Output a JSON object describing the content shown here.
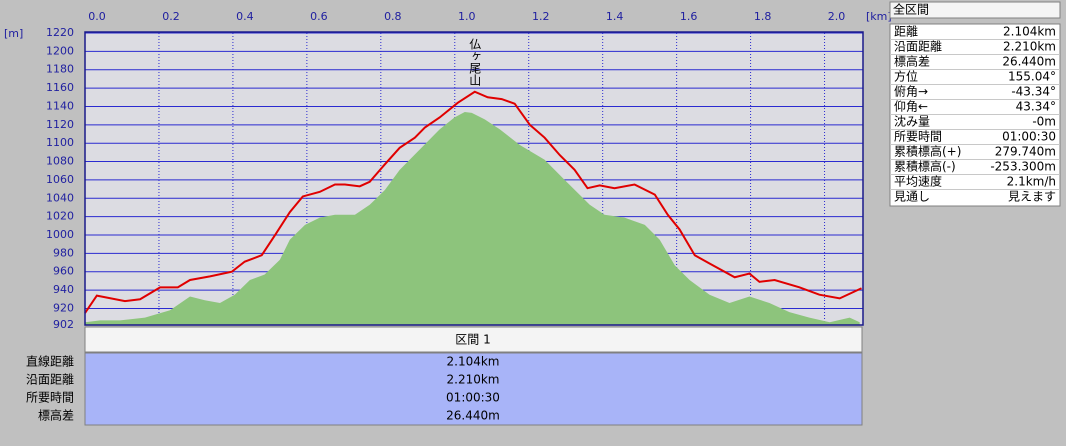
{
  "chart_data": {
    "type": "profile",
    "x_label": "[km]",
    "y_label": "[m]",
    "annotations": [
      {
        "text": "仏ヶ尾山",
        "x": 1.054
      }
    ],
    "xlim": [
      0,
      2.104
    ],
    "xticks": [
      {
        "value": 0,
        "label": "0.0"
      },
      0.2,
      0.4,
      0.6,
      0.8,
      {
        "value": 1,
        "label": "1.0"
      },
      1.2,
      1.4,
      1.6,
      1.8,
      {
        "value": 2,
        "label": "2.0"
      }
    ],
    "ylim": [
      902,
      1220
    ],
    "yticks": [
      902,
      920,
      940,
      960,
      980,
      1000,
      1020,
      1040,
      1060,
      1080,
      1100,
      1120,
      1140,
      1160,
      1180,
      1200,
      1220
    ],
    "grid": true,
    "series": [
      {
        "color": "#8dc47c",
        "kind": "area",
        "x": [
          0,
          0.041,
          0.095,
          0.162,
          0.23,
          0.284,
          0.324,
          0.365,
          0.405,
          0.446,
          0.486,
          0.527,
          0.554,
          0.595,
          0.635,
          0.676,
          0.73,
          0.77,
          0.811,
          0.851,
          0.905,
          0.959,
          0.999,
          1.027,
          1.046,
          1.081,
          1.122,
          1.176,
          1.243,
          1.297,
          1.365,
          1.405,
          1.459,
          1.514,
          1.554,
          1.595,
          1.635,
          1.689,
          1.743,
          1.797,
          1.851,
          1.905,
          1.959,
          2.014,
          2.068,
          2.095
        ],
        "values": [
          905,
          907,
          907,
          910,
          918,
          933,
          929,
          926,
          935,
          951,
          957,
          973,
          995,
          1011,
          1019,
          1022,
          1022,
          1033,
          1049,
          1071,
          1093,
          1115,
          1128,
          1134,
          1133,
          1126,
          1115,
          1098,
          1082,
          1060,
          1033,
          1022,
          1019,
          1011,
          995,
          967,
          951,
          935,
          926,
          933,
          926,
          916,
          910,
          905,
          910,
          905
        ]
      },
      {
        "color": "#e00000",
        "kind": "line",
        "x": [
          0,
          0.032,
          0.108,
          0.149,
          0.203,
          0.251,
          0.284,
          0.338,
          0.397,
          0.432,
          0.478,
          0.514,
          0.554,
          0.589,
          0.635,
          0.676,
          0.703,
          0.743,
          0.77,
          0.811,
          0.851,
          0.892,
          0.919,
          0.959,
          1.008,
          1.054,
          1.089,
          1.127,
          1.162,
          1.203,
          1.243,
          1.284,
          1.324,
          1.359,
          1.392,
          1.432,
          1.486,
          1.541,
          1.576,
          1.608,
          1.649,
          1.689,
          1.757,
          1.797,
          1.824,
          1.865,
          1.932,
          1.986,
          2.041,
          2.073,
          2.1
        ],
        "values": [
          915,
          934,
          928,
          930,
          943,
          943,
          951,
          955,
          960,
          971,
          978,
          1000,
          1025,
          1042,
          1047,
          1055,
          1055,
          1053,
          1058,
          1077,
          1095,
          1106,
          1117,
          1128,
          1144,
          1156,
          1150,
          1148,
          1143,
          1120,
          1106,
          1087,
          1071,
          1051,
          1054,
          1051,
          1055,
          1044,
          1022,
          1006,
          978,
          969,
          954,
          958,
          949,
          951,
          943,
          935,
          931,
          937,
          942
        ]
      }
    ]
  },
  "summary": {
    "title": "全区間",
    "rows": [
      [
        "距離",
        "2.104km"
      ],
      [
        "沿面距離",
        "2.210km"
      ],
      [
        "標高差",
        "26.440m"
      ],
      [
        "方位",
        "155.04°"
      ],
      [
        "俯角→",
        "-43.34°"
      ],
      [
        "仰角←",
        "43.34°"
      ],
      [
        "沈み量",
        "-0m"
      ],
      [
        "所要時間",
        "01:00:30"
      ],
      [
        "累積標高(+)",
        "279.740m"
      ],
      [
        "累積標高(-)",
        "-253.300m"
      ],
      [
        "平均速度",
        "2.1km/h"
      ],
      [
        "見通し",
        "見えます"
      ]
    ]
  },
  "section": {
    "title": "区間 1",
    "rows": [
      [
        "直線距離",
        "2.104km"
      ],
      [
        "沿面距離",
        "2.210km"
      ],
      [
        "所要時間",
        "01:00:30"
      ],
      [
        "標高差",
        "26.440m"
      ]
    ]
  }
}
